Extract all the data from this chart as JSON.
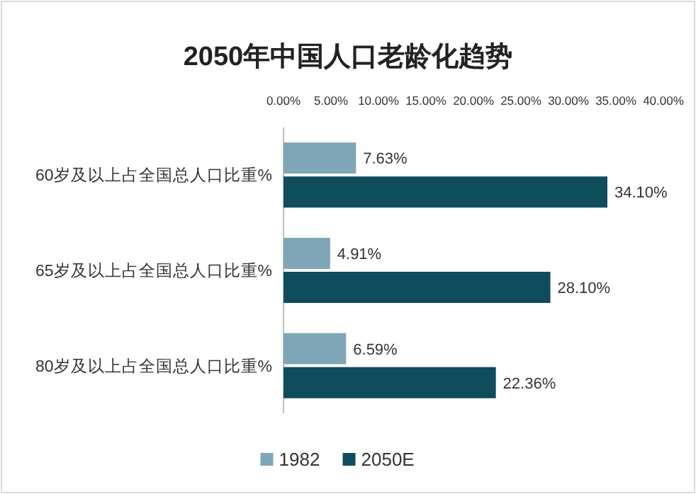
{
  "chart_data": {
    "type": "bar",
    "orientation": "horizontal",
    "title": "2050年中国人口老龄化趋势",
    "categories": [
      "60岁及以上占全国总人口比重%",
      "65岁及以上占全国总人口比重%",
      "80岁及以上占全国总人口比重%"
    ],
    "series": [
      {
        "name": "1982",
        "color": "#7ea6b6",
        "values": [
          7.63,
          4.91,
          6.59
        ],
        "value_labels": [
          "7.63%",
          "4.91%",
          "6.59%"
        ]
      },
      {
        "name": "2050E",
        "color": "#0f4c5c",
        "values": [
          34.1,
          28.1,
          22.36
        ],
        "value_labels": [
          "34.10%",
          "28.10%",
          "22.36%"
        ]
      }
    ],
    "xlim": [
      0,
      40
    ],
    "xticks": [
      {
        "value": 0,
        "label": "0.00%"
      },
      {
        "value": 5,
        "label": "5.00%"
      },
      {
        "value": 10,
        "label": "10.00%"
      },
      {
        "value": 15,
        "label": "15.00%"
      },
      {
        "value": 20,
        "label": "20.00%"
      },
      {
        "value": 25,
        "label": "25.00%"
      },
      {
        "value": 30,
        "label": "30.00%"
      },
      {
        "value": 35,
        "label": "35.00%"
      },
      {
        "value": 40,
        "label": "40.00%"
      }
    ],
    "grid": false,
    "legend": "bottom"
  }
}
